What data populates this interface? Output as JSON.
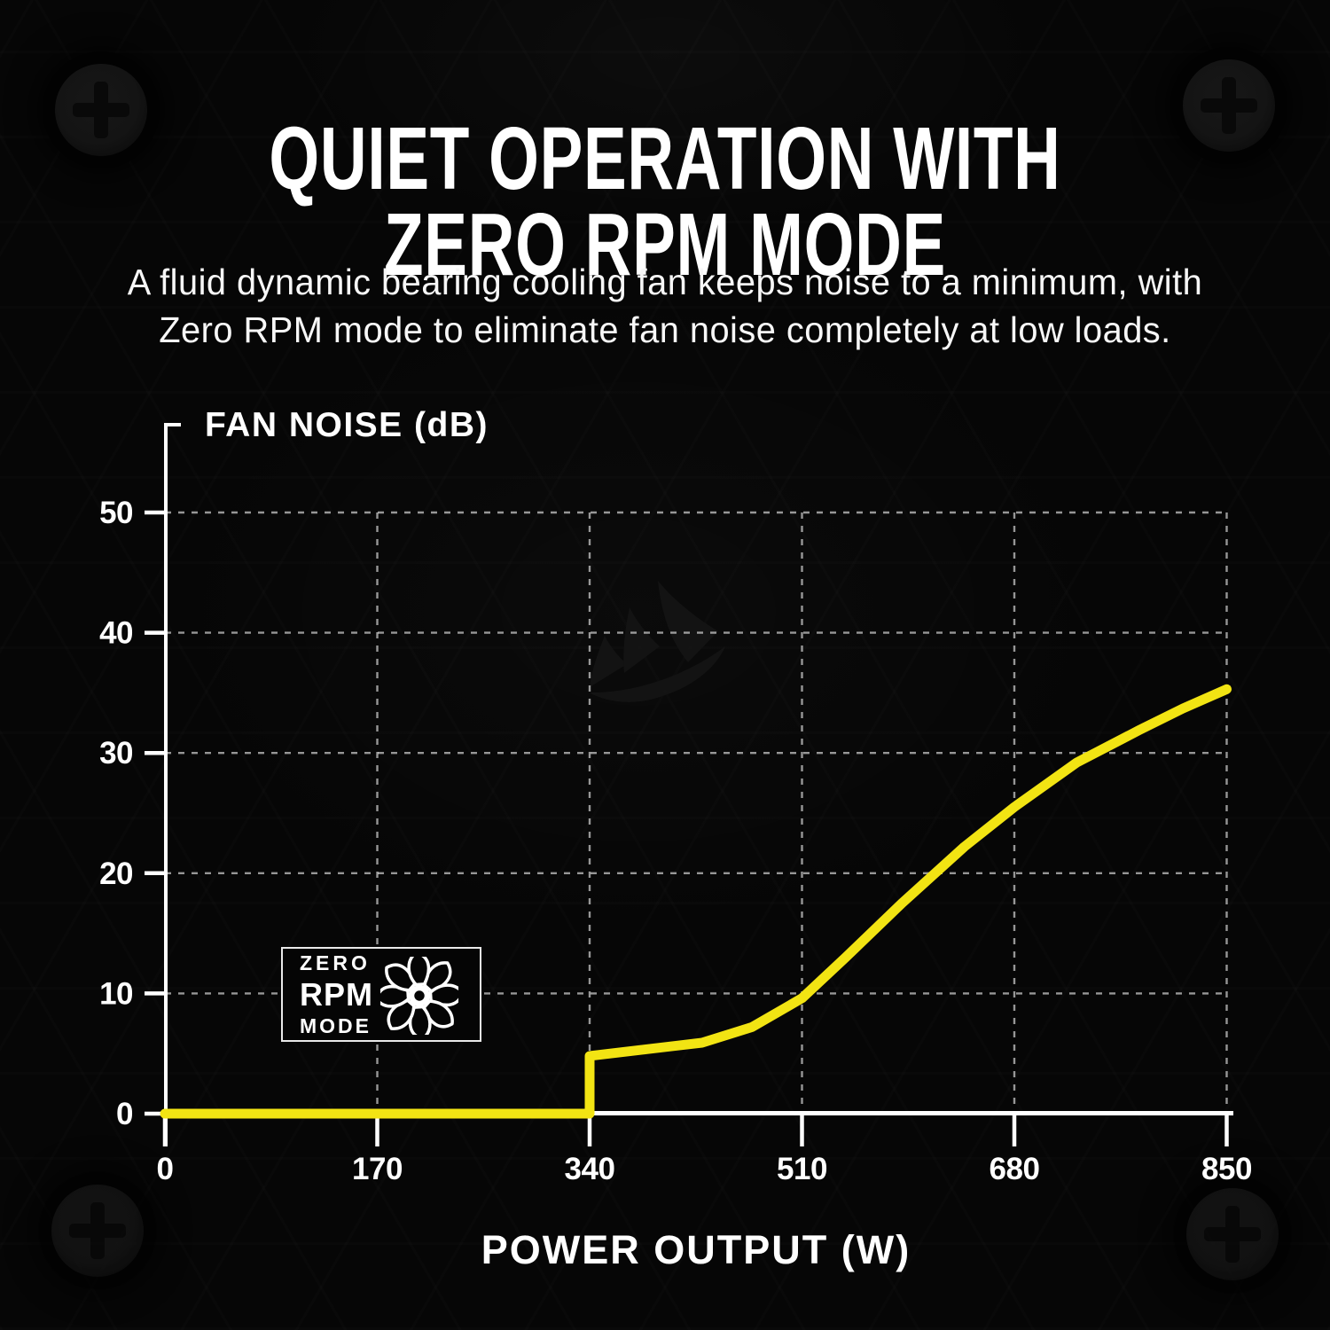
{
  "header": {
    "title_line1": "QUIET OPERATION WITH",
    "title_line2": "ZERO RPM MODE",
    "subtitle_line1": "A fluid dynamic bearing cooling fan keeps noise to a minimum, with",
    "subtitle_line2": "Zero RPM mode to eliminate fan noise completely at low loads."
  },
  "badge": {
    "word1": "ZERO",
    "word2": "RPM",
    "word3": "MODE",
    "icon": "fan-icon"
  },
  "chart_data": {
    "type": "line",
    "title": "",
    "xlabel": "POWER OUTPUT (W)",
    "ylabel": "FAN NOISE (dB)",
    "xlim": [
      0,
      850
    ],
    "ylim": [
      0,
      55
    ],
    "x_ticks": [
      0,
      170,
      340,
      510,
      680,
      850
    ],
    "y_ticks": [
      0,
      10,
      20,
      30,
      40,
      50
    ],
    "grid": "dashed",
    "legend": "none",
    "series": [
      {
        "name": "fan_noise_db",
        "color": "#F2E413",
        "points": [
          [
            0,
            0
          ],
          [
            340,
            0
          ],
          [
            340,
            4.8
          ],
          [
            430,
            5.9
          ],
          [
            470,
            7.2
          ],
          [
            510,
            9.6
          ],
          [
            545,
            13
          ],
          [
            590,
            17.5
          ],
          [
            640,
            22.2
          ],
          [
            680,
            25.5
          ],
          [
            730,
            29.2
          ],
          [
            780,
            31.9
          ],
          [
            815,
            33.7
          ],
          [
            850,
            35.3
          ]
        ]
      }
    ],
    "annotations": [
      "ZERO RPM MODE badge at low loads (fan off below 340 W)"
    ]
  },
  "colors": {
    "background": "#060606",
    "accent_yellow": "#F2E413",
    "axis": "#FFFFFF",
    "gridline": "rgba(255,255,255,0.58)"
  }
}
